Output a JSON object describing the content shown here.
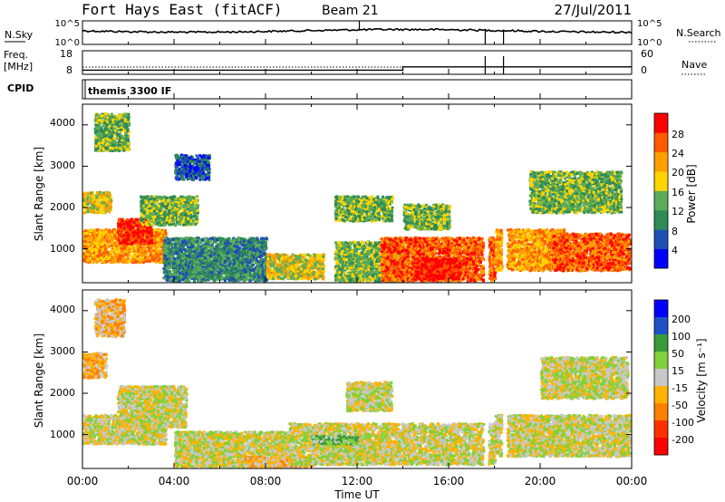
{
  "header": {
    "station": "Fort Hays East (fitACF)",
    "beam": "Beam 21",
    "date": "27/Jul/2011"
  },
  "noise_panel": {
    "left_label": "N.Sky",
    "right_label": "N.Search",
    "left_ticks": [
      "10^5",
      "10^0"
    ],
    "right_ticks": [
      "10^5",
      "10^0"
    ]
  },
  "freq_panel": {
    "left_label_1": "Freq.",
    "left_label_2": "[MHz]",
    "right_label": "Nave",
    "left_ticks": [
      "18",
      "8"
    ],
    "right_ticks": [
      "60",
      "0"
    ]
  },
  "cpid_panel": {
    "label": "CPID",
    "mode": "themis 3300 IF"
  },
  "power_panel": {
    "ylabel": "Slant Range [km]",
    "yticks": [
      "4000",
      "3000",
      "2000",
      "1000"
    ],
    "colorbar_label": "Power [dB]",
    "colorbar_ticks": [
      "28",
      "24",
      "20",
      "16",
      "12",
      "8",
      "4"
    ],
    "colors": [
      "#0000ff",
      "#1f4fb0",
      "#2e8b57",
      "#5aac5a",
      "#ffd400",
      "#ff9f00",
      "#ff5a00",
      "#ff0000"
    ]
  },
  "velocity_panel": {
    "ylabel": "Slant Range [km]",
    "yticks": [
      "4000",
      "3000",
      "2000",
      "1000"
    ],
    "colorbar_label": "Velocity [m s⁻¹]",
    "colorbar_ticks": [
      "200",
      "100",
      "50",
      "15",
      "-15",
      "-50",
      "-100",
      "-200"
    ],
    "colors": [
      "#0000ff",
      "#1f50c8",
      "#3a9a3a",
      "#7fd23a",
      "#c8c8c8",
      "#ffb300",
      "#ff7f00",
      "#ff3000",
      "#ff0000"
    ]
  },
  "x_axis": {
    "ticks": [
      "00:00",
      "04:00",
      "08:00",
      "12:00",
      "16:00",
      "20:00",
      "00:00"
    ],
    "label": "Time UT"
  },
  "chart_data": {
    "type": "heatmap",
    "x_range_hours": [
      0,
      24
    ],
    "y_range_km": [
      180,
      4500
    ],
    "freq_step_hours": [
      0,
      2,
      14,
      24
    ],
    "freq_levels_mhz": [
      10,
      10,
      12
    ],
    "gaps_hours": [
      17.6,
      18.4
    ],
    "echo_regions_power": [
      {
        "t0": 0.0,
        "t1": 3.6,
        "r0": 700,
        "r1": 1500,
        "level": 5
      },
      {
        "t0": 1.5,
        "t1": 3.0,
        "r0": 1150,
        "r1": 1750,
        "level": 7
      },
      {
        "t0": 0.5,
        "t1": 2.0,
        "r0": 3400,
        "r1": 4300,
        "level": 3
      },
      {
        "t0": 0.0,
        "t1": 1.2,
        "r0": 1900,
        "r1": 2400,
        "level": 4
      },
      {
        "t0": 2.5,
        "t1": 5.0,
        "r0": 1600,
        "r1": 2300,
        "level": 3
      },
      {
        "t0": 3.5,
        "t1": 8.0,
        "r0": 250,
        "r1": 1300,
        "level": 2
      },
      {
        "t0": 8.0,
        "t1": 10.5,
        "r0": 300,
        "r1": 900,
        "level": 4
      },
      {
        "t0": 11.0,
        "t1": 14.0,
        "r0": 250,
        "r1": 1200,
        "level": 3
      },
      {
        "t0": 13.0,
        "t1": 18.0,
        "r0": 250,
        "r1": 1300,
        "level": 6
      },
      {
        "t0": 14.5,
        "t1": 16.5,
        "r0": 300,
        "r1": 800,
        "level": 7
      },
      {
        "t0": 11.0,
        "t1": 13.5,
        "r0": 1700,
        "r1": 2300,
        "level": 3
      },
      {
        "t0": 14.0,
        "t1": 16.0,
        "r0": 1500,
        "r1": 2100,
        "level": 3
      },
      {
        "t0": 18.0,
        "t1": 21.0,
        "r0": 500,
        "r1": 1500,
        "level": 5
      },
      {
        "t0": 20.5,
        "t1": 24.0,
        "r0": 500,
        "r1": 1400,
        "level": 6
      },
      {
        "t0": 19.5,
        "t1": 23.5,
        "r0": 1900,
        "r1": 2900,
        "level": 3
      },
      {
        "t0": 4.0,
        "t1": 5.5,
        "r0": 2700,
        "r1": 3300,
        "level": 1
      }
    ],
    "echo_regions_velocity": [
      {
        "t0": 0.0,
        "t1": 3.6,
        "r0": 800,
        "r1": 1500,
        "level": 4
      },
      {
        "t0": 1.5,
        "t1": 4.5,
        "r0": 1200,
        "r1": 2200,
        "level": 4
      },
      {
        "t0": 0.5,
        "t1": 1.8,
        "r0": 3400,
        "r1": 4300,
        "level": 5
      },
      {
        "t0": 0.0,
        "t1": 1.0,
        "r0": 2400,
        "r1": 3000,
        "level": 5
      },
      {
        "t0": 4.0,
        "t1": 9.0,
        "r0": 250,
        "r1": 1100,
        "level": 4
      },
      {
        "t0": 7.0,
        "t1": 10.0,
        "r0": 250,
        "r1": 500,
        "level": 5
      },
      {
        "t0": 9.0,
        "t1": 18.0,
        "r0": 300,
        "r1": 1300,
        "level": 4
      },
      {
        "t0": 11.5,
        "t1": 13.5,
        "r0": 1600,
        "r1": 2300,
        "level": 4
      },
      {
        "t0": 18.0,
        "t1": 24.0,
        "r0": 500,
        "r1": 1500,
        "level": 4
      },
      {
        "t0": 20.0,
        "t1": 23.8,
        "r0": 1900,
        "r1": 2900,
        "level": 4
      },
      {
        "t0": 10.0,
        "t1": 12.0,
        "r0": 800,
        "r1": 1000,
        "level": 3
      }
    ]
  }
}
